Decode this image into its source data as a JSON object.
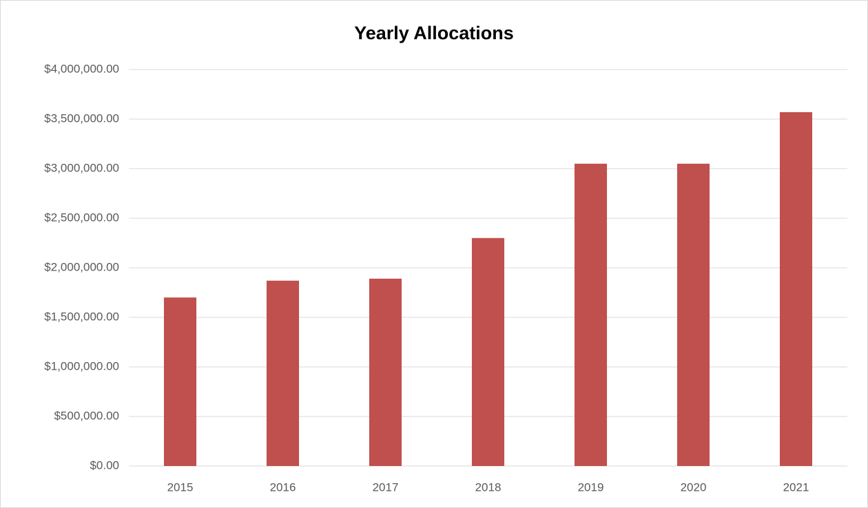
{
  "chart_data": {
    "type": "bar",
    "title": "Yearly Allocations",
    "categories": [
      "2015",
      "2016",
      "2017",
      "2018",
      "2019",
      "2020",
      "2021"
    ],
    "values": [
      1700000,
      1870000,
      1890000,
      2300000,
      3050000,
      3050000,
      3570000
    ],
    "color": "#c0504d",
    "ylim": [
      0,
      4000000
    ],
    "yticks": [
      {
        "value": 0,
        "label": "$0.00"
      },
      {
        "value": 500000,
        "label": "$500,000.00"
      },
      {
        "value": 1000000,
        "label": "$1,000,000.00"
      },
      {
        "value": 1500000,
        "label": "$1,500,000.00"
      },
      {
        "value": 2000000,
        "label": "$2,000,000.00"
      },
      {
        "value": 2500000,
        "label": "$2,500,000.00"
      },
      {
        "value": 3000000,
        "label": "$3,000,000.00"
      },
      {
        "value": 3500000,
        "label": "$3,500,000.00"
      },
      {
        "value": 4000000,
        "label": "$4,000,000.00"
      }
    ],
    "grid": true
  }
}
